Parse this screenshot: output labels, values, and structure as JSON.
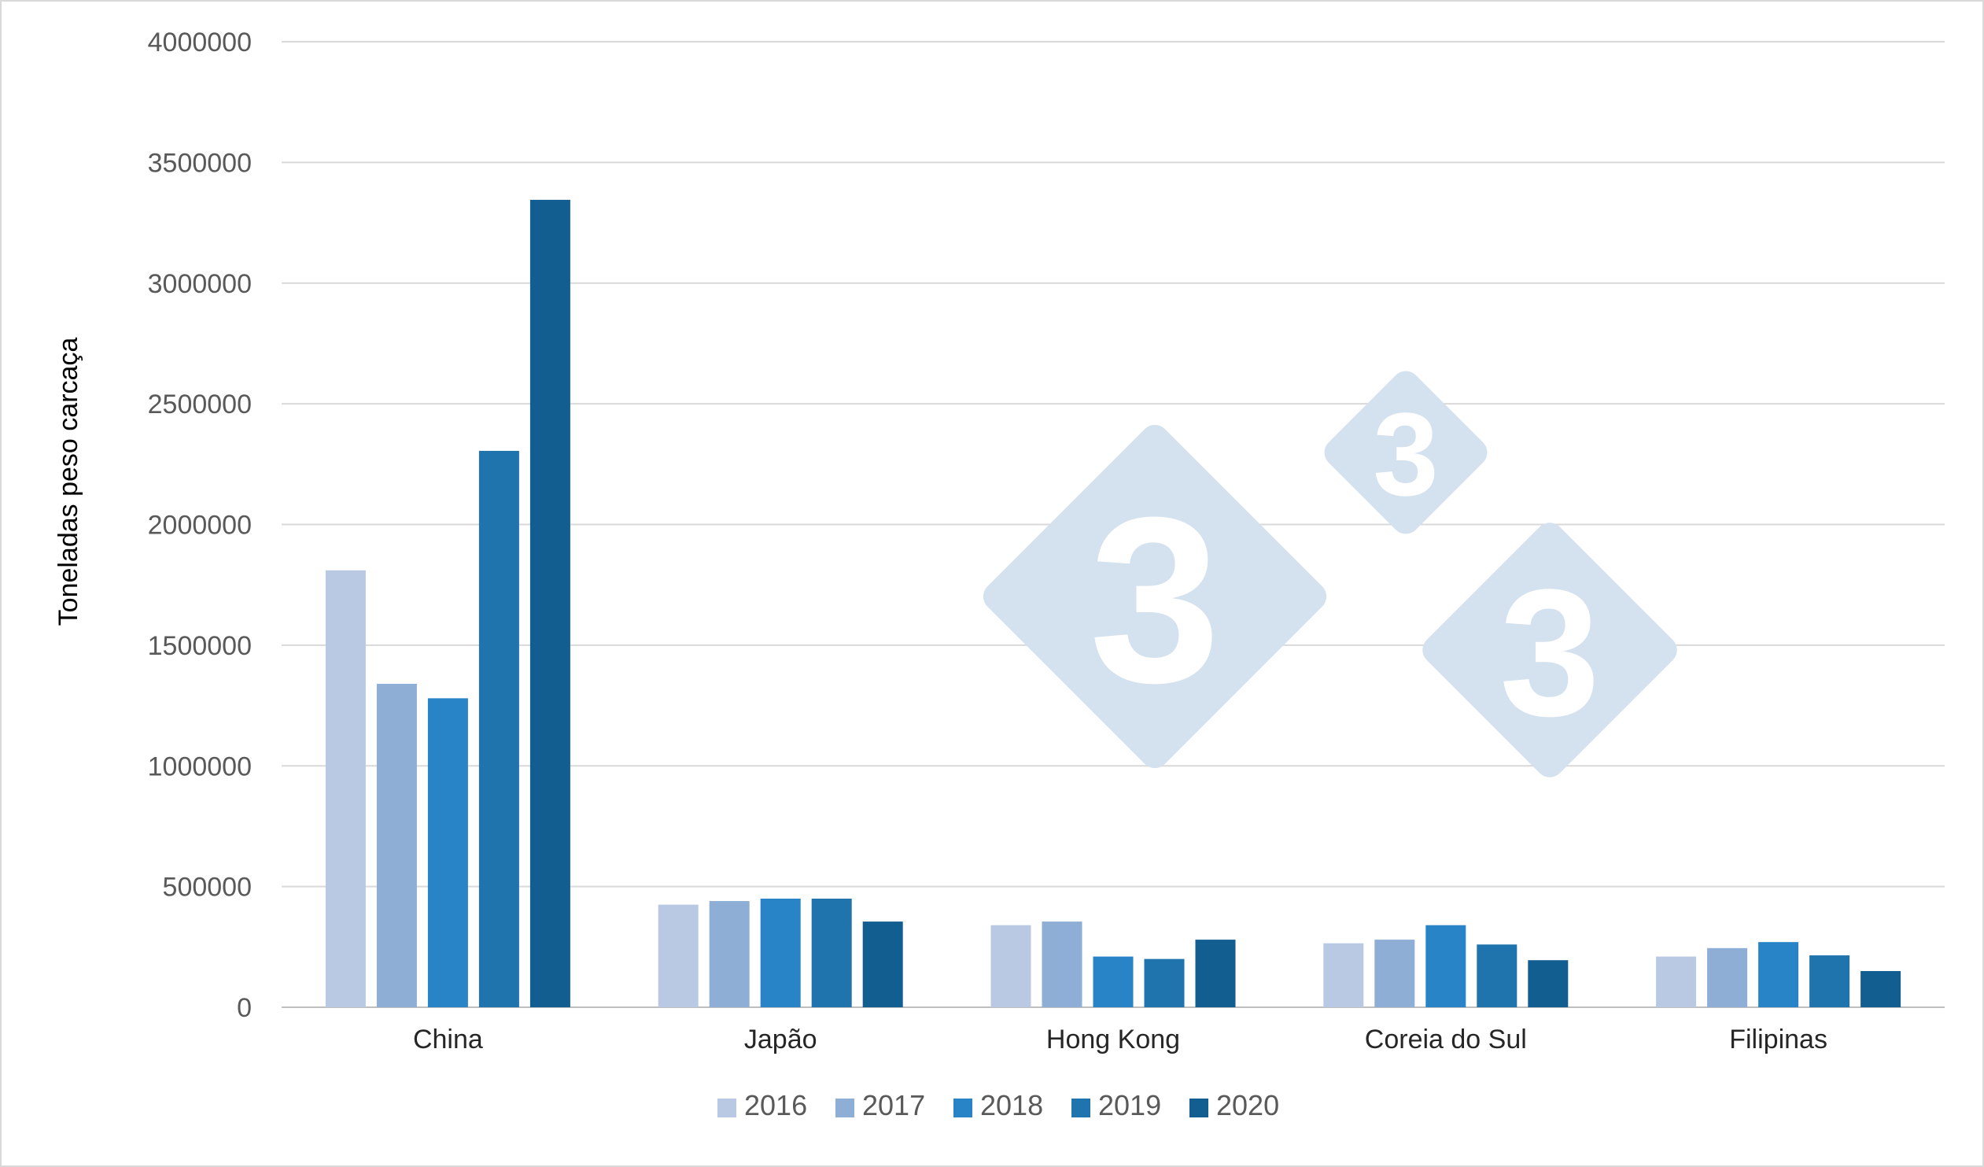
{
  "chart_data": {
    "type": "bar",
    "title": "",
    "xlabel": "",
    "ylabel": "Toneladas peso carcaça",
    "ylim": [
      0,
      4000000
    ],
    "yticks": [
      0,
      500000,
      1000000,
      1500000,
      2000000,
      2500000,
      3000000,
      3500000,
      4000000
    ],
    "yticks_text": [
      "0",
      "500000",
      "1000000",
      "1500000",
      "2000000",
      "2500000",
      "3000000",
      "3500000",
      "4000000"
    ],
    "grid": true,
    "legend_position": "bottom",
    "categories": [
      "China",
      "Japão",
      "Hong Kong",
      "Coreia do Sul",
      "Filipinas"
    ],
    "series": [
      {
        "name": "2016",
        "color": "#b9c9e3",
        "values": [
          1810000,
          425000,
          340000,
          265000,
          210000
        ]
      },
      {
        "name": "2017",
        "color": "#8eaed6",
        "values": [
          1340000,
          440000,
          355000,
          280000,
          245000
        ]
      },
      {
        "name": "2018",
        "color": "#2884c6",
        "values": [
          1280000,
          450000,
          210000,
          340000,
          270000
        ]
      },
      {
        "name": "2019",
        "color": "#1f74ad",
        "values": [
          2305000,
          450000,
          200000,
          260000,
          215000
        ]
      },
      {
        "name": "2020",
        "color": "#135e91",
        "values": [
          3345000,
          355000,
          280000,
          195000,
          150000
        ]
      }
    ]
  },
  "watermark": {
    "label": "333",
    "color": "#d4e1ee"
  }
}
